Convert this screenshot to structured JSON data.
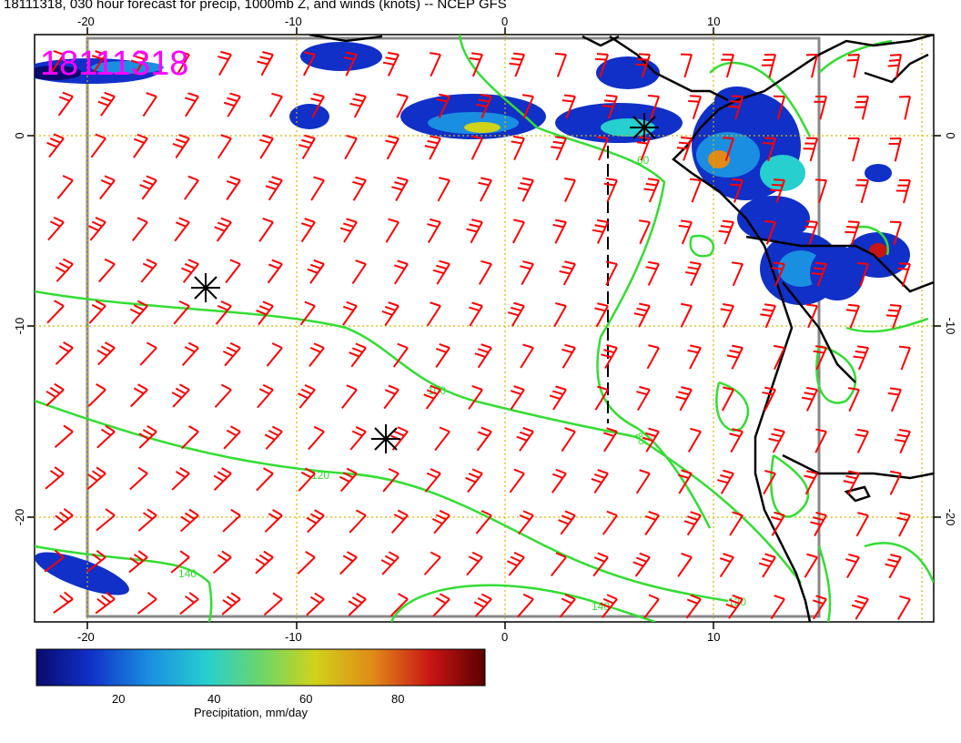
{
  "title": "18111318, 030 hour forecast for precip, 1000mb Z, and winds (knots) -- NCEP GFS",
  "stamp": "18111318",
  "lon_ticks": [
    "-20",
    "-10",
    "0",
    "10"
  ],
  "lat_ticks": [
    "0",
    "-10",
    "-20"
  ],
  "contour_labels": [
    "60",
    "80",
    "100",
    "120",
    "140"
  ],
  "colorbar": {
    "title": "Precipitation, mm/day",
    "labels": [
      "20",
      "40",
      "60",
      "80"
    ],
    "colors": [
      "#0a0a6e",
      "#1030c8",
      "#1a8ee0",
      "#27cfcf",
      "#6ad66a",
      "#cfd31a",
      "#e08a18",
      "#c81414",
      "#5a0000"
    ]
  },
  "colors": {
    "wind_barb": "#ff0000",
    "height_contour": "#33dd33",
    "coastline": "#000000",
    "grid": "#d4b800",
    "frame": "#888888",
    "stamp": "#ff00ff"
  },
  "markers": [
    "storm-marker-1",
    "storm-marker-2",
    "storm-marker-3"
  ]
}
